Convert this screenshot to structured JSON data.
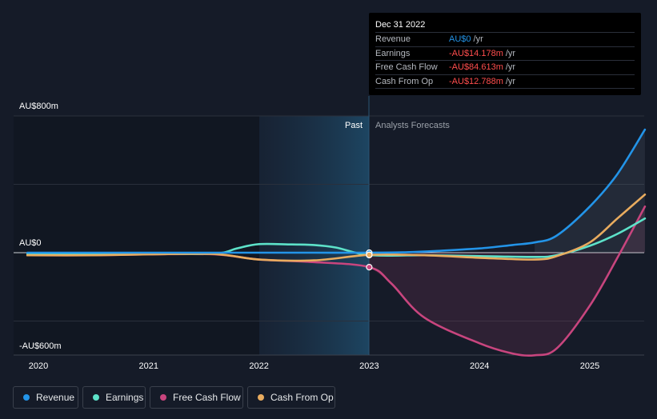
{
  "chart_data": {
    "type": "line",
    "x_ticks": [
      "2020",
      "2021",
      "2022",
      "2023",
      "2024",
      "2025"
    ],
    "y_labels": [
      "AU$800m",
      "AU$0",
      "-AU$600m"
    ],
    "ylim": [
      -600,
      800
    ],
    "divider_labels": {
      "past": "Past",
      "forecast": "Analysts Forecasts"
    },
    "series": [
      {
        "name": "Revenue",
        "color": "#2394e8",
        "points": [
          [
            2019.9,
            0
          ],
          [
            2020.5,
            0
          ],
          [
            2021.0,
            0
          ],
          [
            2021.5,
            0
          ],
          [
            2022.0,
            0
          ],
          [
            2022.5,
            0
          ],
          [
            2023.0,
            0
          ],
          [
            2023.3,
            2
          ],
          [
            2023.6,
            10
          ],
          [
            2024.0,
            25
          ],
          [
            2024.3,
            45
          ],
          [
            2024.5,
            60
          ],
          [
            2024.7,
            100
          ],
          [
            2025.0,
            270
          ],
          [
            2025.25,
            460
          ],
          [
            2025.5,
            720
          ]
        ]
      },
      {
        "name": "Earnings",
        "color": "#5de2c9",
        "points": [
          [
            2019.9,
            -8
          ],
          [
            2020.5,
            -7
          ],
          [
            2021.0,
            -6
          ],
          [
            2021.6,
            -5
          ],
          [
            2021.8,
            25
          ],
          [
            2022.0,
            50
          ],
          [
            2022.3,
            48
          ],
          [
            2022.5,
            45
          ],
          [
            2022.7,
            30
          ],
          [
            2023.0,
            -14.178
          ],
          [
            2023.5,
            -15
          ],
          [
            2024.0,
            -20
          ],
          [
            2024.5,
            -25
          ],
          [
            2024.7,
            -15
          ],
          [
            2025.0,
            40
          ],
          [
            2025.25,
            110
          ],
          [
            2025.5,
            200
          ]
        ]
      },
      {
        "name": "Free Cash Flow",
        "color": "#c8457e",
        "points": [
          [
            2019.9,
            -15
          ],
          [
            2020.5,
            -15
          ],
          [
            2021.0,
            -10
          ],
          [
            2021.6,
            -10
          ],
          [
            2022.0,
            -40
          ],
          [
            2022.5,
            -55
          ],
          [
            2023.0,
            -84.613
          ],
          [
            2023.2,
            -180
          ],
          [
            2023.5,
            -380
          ],
          [
            2024.0,
            -530
          ],
          [
            2024.3,
            -590
          ],
          [
            2024.5,
            -600
          ],
          [
            2024.7,
            -560
          ],
          [
            2025.0,
            -310
          ],
          [
            2025.25,
            -30
          ],
          [
            2025.5,
            270
          ]
        ]
      },
      {
        "name": "Cash From Op",
        "color": "#e9ac5f",
        "points": [
          [
            2019.9,
            -15
          ],
          [
            2020.5,
            -15
          ],
          [
            2021.0,
            -10
          ],
          [
            2021.6,
            -8
          ],
          [
            2022.0,
            -40
          ],
          [
            2022.5,
            -45
          ],
          [
            2023.0,
            -12.788
          ],
          [
            2023.5,
            -15
          ],
          [
            2024.0,
            -30
          ],
          [
            2024.5,
            -40
          ],
          [
            2024.7,
            -20
          ],
          [
            2025.0,
            60
          ],
          [
            2025.25,
            200
          ],
          [
            2025.5,
            340
          ]
        ]
      }
    ]
  },
  "tooltip": {
    "date": "Dec 31 2022",
    "unit": "/yr",
    "rows": [
      {
        "label": "Revenue",
        "value": "AU$0",
        "color": "#2394e8"
      },
      {
        "label": "Earnings",
        "value": "-AU$14.178m",
        "color": "#ff4d4d"
      },
      {
        "label": "Free Cash Flow",
        "value": "-AU$84.613m",
        "color": "#ff4d4d"
      },
      {
        "label": "Cash From Op",
        "value": "-AU$12.788m",
        "color": "#ff4d4d"
      }
    ]
  },
  "legend": [
    {
      "label": "Revenue",
      "color": "#2394e8"
    },
    {
      "label": "Earnings",
      "color": "#5de2c9"
    },
    {
      "label": "Free Cash Flow",
      "color": "#c8457e"
    },
    {
      "label": "Cash From Op",
      "color": "#e9ac5f"
    }
  ]
}
